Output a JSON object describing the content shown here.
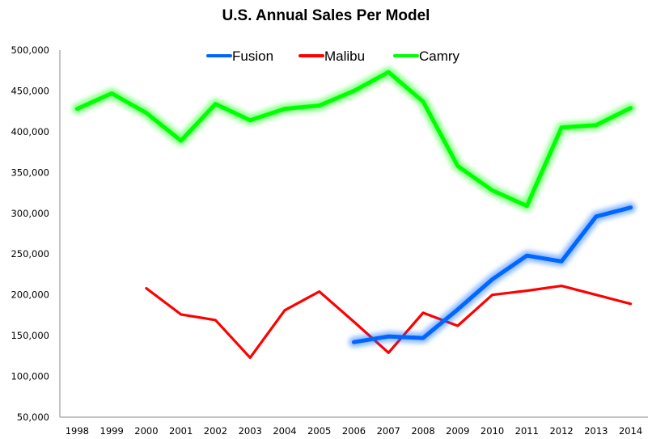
{
  "chart_data": {
    "type": "line",
    "title": "U.S. Annual Sales Per Model",
    "xlabel": "",
    "ylabel": "",
    "categories": [
      "1998",
      "1999",
      "2000",
      "2001",
      "2002",
      "2003",
      "2004",
      "2005",
      "2006",
      "2007",
      "2008",
      "2009",
      "2010",
      "2011",
      "2012",
      "2013",
      "2014"
    ],
    "ylim": [
      50000,
      500000
    ],
    "yticks": [
      50000,
      100000,
      150000,
      200000,
      250000,
      300000,
      350000,
      400000,
      450000,
      500000
    ],
    "ytick_labels": [
      "50,000",
      "100,000",
      "150,000",
      "200,000",
      "250,000",
      "300,000",
      "350,000",
      "400,000",
      "450,000",
      "500,000"
    ],
    "grid": false,
    "legend_position": "top-center",
    "series": [
      {
        "name": "Fusion",
        "color": "#0066ff",
        "glow": true,
        "values": [
          null,
          null,
          null,
          null,
          null,
          null,
          null,
          null,
          142000,
          149000,
          147000,
          182000,
          219000,
          248000,
          241000,
          296000,
          307000
        ]
      },
      {
        "name": "Malibu",
        "color": "#ff0000",
        "glow": false,
        "values": [
          null,
          null,
          208000,
          176000,
          169000,
          123000,
          181000,
          204000,
          167000,
          129000,
          178000,
          162000,
          200000,
          205000,
          211000,
          200000,
          189000
        ]
      },
      {
        "name": "Camry",
        "color": "#00ff00",
        "glow": true,
        "values": [
          428000,
          447000,
          423000,
          389000,
          434000,
          414000,
          428000,
          432000,
          450000,
          473000,
          437000,
          358000,
          328000,
          309000,
          405000,
          408000,
          429000
        ]
      }
    ]
  }
}
